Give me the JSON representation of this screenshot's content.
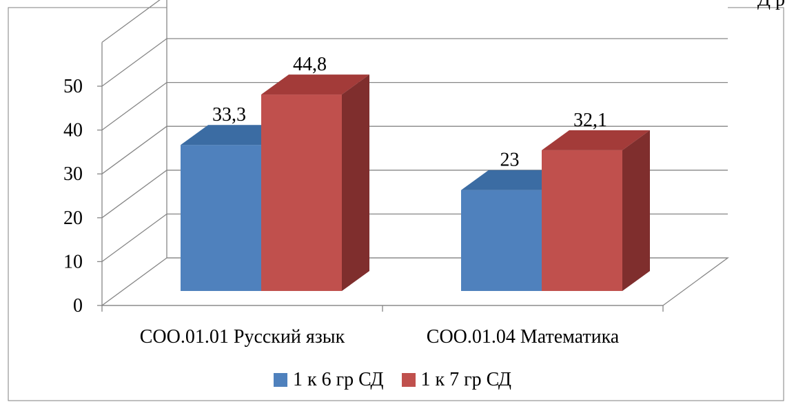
{
  "corner_text": "Д р",
  "chart_data": {
    "type": "bar",
    "style": "3d-clustered-column",
    "categories": [
      "СОО.01.01 Русский язык",
      "СОО.01.04 Математика"
    ],
    "series": [
      {
        "name": "1 к 6 гр СД",
        "values": [
          33.3,
          23
        ],
        "labels": [
          "33,3",
          "23"
        ],
        "color": "#4F81BD",
        "top_color": "#3B6CA3",
        "side_color": "#2F5A8C"
      },
      {
        "name": "1 к 7 гр СД",
        "values": [
          44.8,
          32.1
        ],
        "labels": [
          "44,8",
          "32,1"
        ],
        "color": "#C0504D",
        "top_color": "#A33B39",
        "side_color": "#7F2E2D"
      }
    ],
    "yticks": [
      "0",
      "10",
      "20",
      "30",
      "40",
      "50"
    ],
    "ylim": [
      0,
      60
    ],
    "grid": true,
    "legend_position": "bottom",
    "xlabel": "",
    "ylabel": "",
    "title": ""
  }
}
